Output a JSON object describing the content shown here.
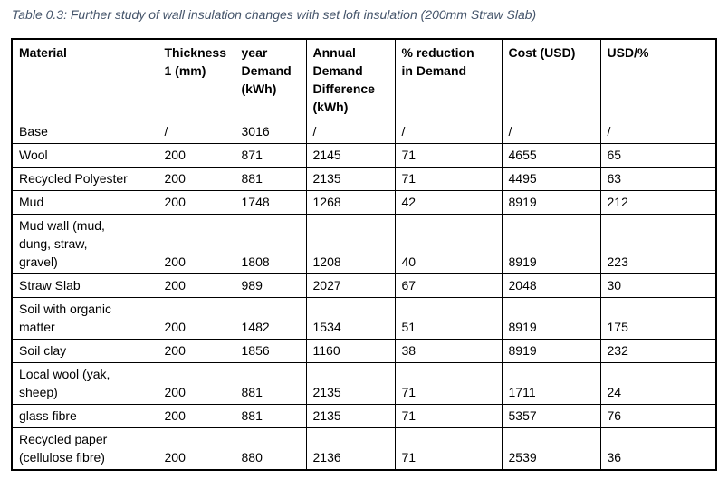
{
  "caption": {
    "text": "Table 0.3: Further study of wall insulation changes with set loft insulation (200mm Straw Slab)",
    "color": "#44546A"
  },
  "table": {
    "columns": [
      "Material",
      "Thickness\n1 (mm)",
      "year\nDemand\n(kWh)",
      "Annual\nDemand\nDifference\n(kWh)",
      "% reduction\nin Demand",
      "Cost (USD)",
      "USD/%"
    ],
    "rows": [
      [
        "Base",
        "/",
        "3016",
        "/",
        "/",
        "/",
        "/"
      ],
      [
        "Wool",
        "200",
        "871",
        "2145",
        "71",
        "4655",
        "65"
      ],
      [
        "Recycled Polyester",
        "200",
        "881",
        "2135",
        "71",
        "4495",
        "63"
      ],
      [
        "Mud",
        "200",
        "1748",
        "1268",
        "42",
        "8919",
        "212"
      ],
      [
        "Mud wall (mud,\ndung, straw,\ngravel)",
        "200",
        "1808",
        "1208",
        "40",
        "8919",
        "223"
      ],
      [
        "Straw Slab",
        "200",
        "989",
        "2027",
        "67",
        "2048",
        "30"
      ],
      [
        "Soil with organic\nmatter",
        "200",
        "1482",
        "1534",
        "51",
        "8919",
        "175"
      ],
      [
        "Soil clay",
        "200",
        "1856",
        "1160",
        "38",
        "8919",
        "232"
      ],
      [
        "Local wool (yak,\nsheep)",
        "200",
        "881",
        "2135",
        "71",
        "1711",
        "24"
      ],
      [
        "glass fibre",
        "200",
        "881",
        "2135",
        "71",
        "5357",
        "76"
      ],
      [
        "Recycled paper\n(cellulose fibre)",
        "200",
        "880",
        "2136",
        "71",
        "2539",
        "36"
      ]
    ]
  }
}
